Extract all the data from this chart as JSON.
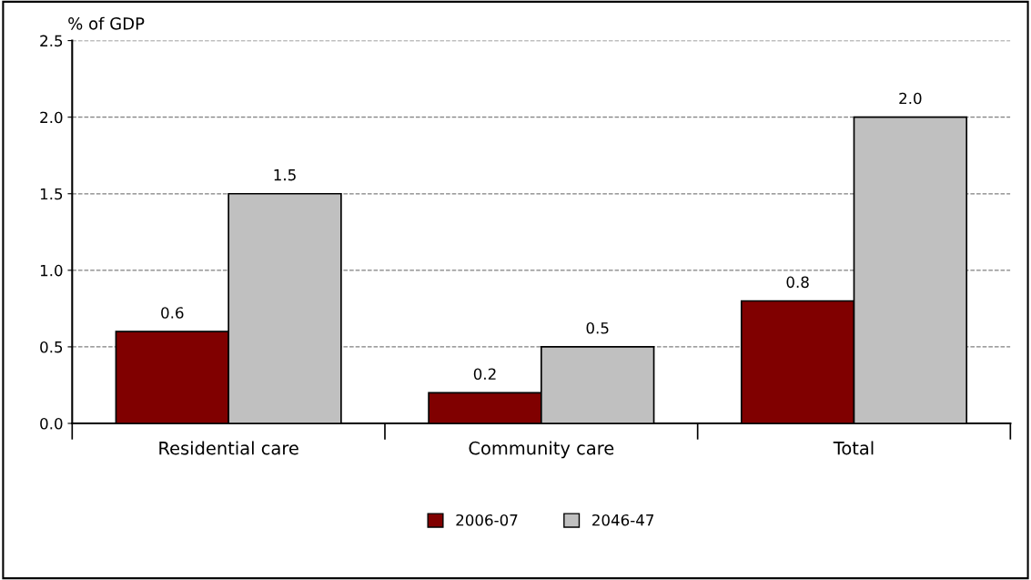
{
  "chart_data": {
    "type": "bar",
    "ylabel": "% of GDP",
    "categories": [
      "Residential care",
      "Community care",
      "Total"
    ],
    "series": [
      {
        "name": "2006-07",
        "color": "#800000",
        "values": [
          0.6,
          0.2,
          0.8
        ],
        "value_labels": [
          "0.6",
          "0.2",
          "0.8"
        ]
      },
      {
        "name": "2046-47",
        "color": "#c0c0c0",
        "values": [
          1.5,
          0.5,
          2.0
        ],
        "value_labels": [
          "1.5",
          "0.5",
          "2.0"
        ]
      }
    ],
    "ylim": [
      0,
      2.5
    ],
    "yticks": [
      "0.0",
      "0.5",
      "1.0",
      "1.5",
      "2.0",
      "2.5"
    ],
    "grid": "y",
    "legend": "bottom"
  }
}
